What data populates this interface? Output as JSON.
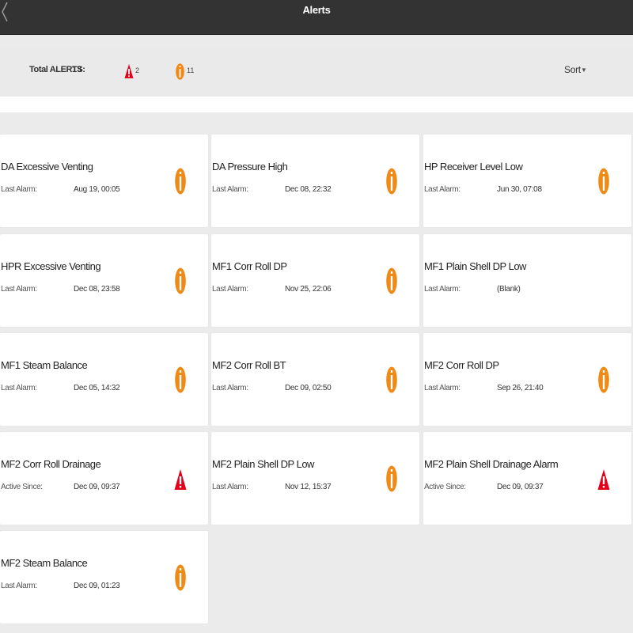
{
  "header": {
    "title": "Alerts",
    "back_icon": "chevron-left-icon"
  },
  "summary": {
    "total_label": "Total ALERTS:",
    "total_count": "13",
    "warning_count": "2",
    "info_count": "11",
    "sort_label": "Sort",
    "sort_caret": "▼"
  },
  "colors": {
    "warning": "#e3001b",
    "info": "#ef8a17",
    "topbar": "#333333"
  },
  "alerts": [
    {
      "title": "DA Excessive Venting",
      "label": "Last Alarm:",
      "value": "Aug 19, 00:05",
      "icon": "info-icon"
    },
    {
      "title": "DA Pressure High",
      "label": "Last Alarm:",
      "value": "Dec 08, 22:32",
      "icon": "info-icon"
    },
    {
      "title": "HP Receiver Level Low",
      "label": "Last Alarm:",
      "value": "Jun 30, 07:08",
      "icon": "info-icon"
    },
    {
      "title": "HPR Excessive Venting",
      "label": "Last Alarm:",
      "value": "Dec 08, 23:58",
      "icon": "info-icon"
    },
    {
      "title": "MF1 Corr Roll DP",
      "label": "Last Alarm:",
      "value": "Nov 25, 22:06",
      "icon": "info-icon"
    },
    {
      "title": "MF1 Plain Shell DP Low",
      "label": "Last Alarm:",
      "value": "(Blank)",
      "icon": ""
    },
    {
      "title": "MF1 Steam Balance",
      "label": "Last Alarm:",
      "value": "Dec 05, 14:32",
      "icon": "info-icon"
    },
    {
      "title": "MF2 Corr Roll BT",
      "label": "Last Alarm:",
      "value": "Dec 09, 02:50",
      "icon": "info-icon"
    },
    {
      "title": "MF2 Corr Roll DP",
      "label": "Last Alarm:",
      "value": "Sep 26, 21:40",
      "icon": "info-icon"
    },
    {
      "title": "MF2 Corr Roll Drainage",
      "label": "Active Since:",
      "value": "Dec 09, 09:37",
      "icon": "warning-icon"
    },
    {
      "title": "MF2 Plain Shell DP Low",
      "label": "Last Alarm:",
      "value": "Nov 12, 15:37",
      "icon": "info-icon"
    },
    {
      "title": "MF2 Plain Shell Drainage Alarm",
      "label": "Active Since:",
      "value": "Dec 09, 09:37",
      "icon": "warning-icon"
    },
    {
      "title": "MF2 Steam Balance",
      "label": "Last Alarm:",
      "value": "Dec 09, 01:23",
      "icon": "info-icon"
    }
  ]
}
